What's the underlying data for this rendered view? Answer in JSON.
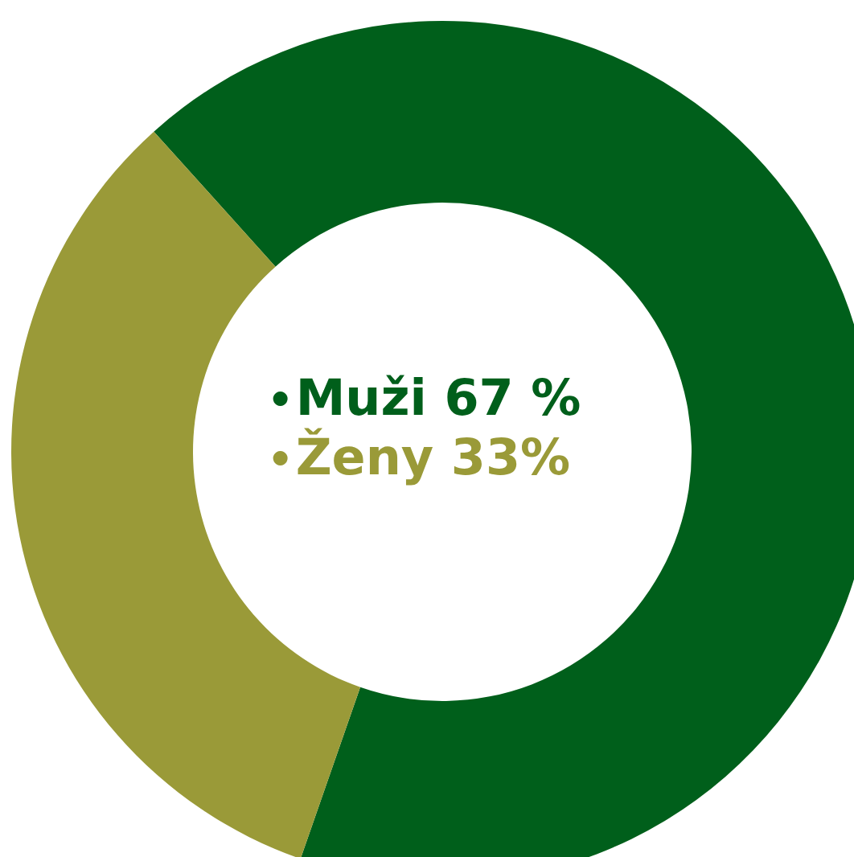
{
  "chart_data": {
    "type": "donut",
    "categories": [
      "Muži",
      "Ženy"
    ],
    "values": [
      67,
      33
    ],
    "value_labels": [
      "67 %",
      "33%"
    ],
    "colors": [
      "#005f1b",
      "#9a9a38"
    ],
    "legend": "center"
  }
}
